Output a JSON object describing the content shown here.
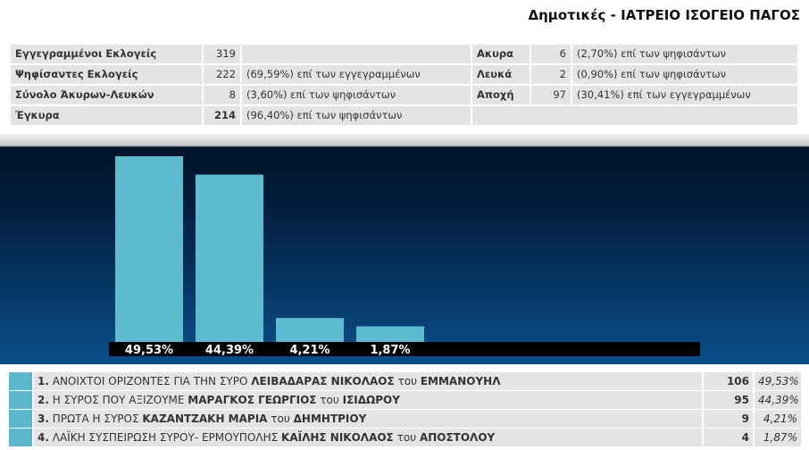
{
  "header": {
    "title": "Δημοτικές - ΙΑΤΡΕΙΟ ΙΣΟΓΕΙΟ ΠΑΓΟΣ"
  },
  "stats_left": [
    [
      "Εγγεγραμμένοι Εκλογείς",
      319
    ],
    [
      "Ψηφίσαντες Εκλογείς",
      222,
      "(69,59%) επί των εγγεγραμμένων"
    ],
    [
      "Σύνολο Άκυρων-Λευκών",
      8,
      "(3,60%) επί των ψηφισάντων"
    ],
    [
      "Έγκυρα",
      214,
      "(96,40%) επί των ψηφισάντων"
    ]
  ],
  "stats_right": [
    [
      "Ακυρα",
      6,
      "(2,70%) επί των ψηφισάντων"
    ],
    [
      "Λευκά",
      2,
      "(0,90%) επί των ψηφισάντων"
    ],
    [
      "Αποχή",
      97,
      "(30,41%) επί των εγγεγραμμένων"
    ]
  ],
  "chart": {
    "type": "bar",
    "values": [
      49.53,
      44.39,
      4.21,
      1.87
    ],
    "value_labels": [
      "49,53%",
      "44,39%",
      "4,21%",
      "1,87%"
    ],
    "color": "#5cbbcf"
  },
  "results": [
    {
      "rank": "1.",
      "party": "ΑΝΟΙΧΤΟΙ ΟΡΙΖΟΝΤΕΣ ΓΙΑ ΤΗΝ ΣΥΡΟ",
      "candidate": "ΛΕΙΒΑΔΑΡΑΣ ΝΙΚΟΛΑΟΣ",
      "of": "του",
      "father": "ΕΜΜΑΝΟΥΗΛ",
      "votes": 106,
      "percent": "49,53%"
    },
    {
      "rank": "2.",
      "party": "Η ΣΥΡΟΣ ΠΟΥ ΑΞΙΖΟΥΜΕ",
      "candidate": "ΜΑΡΑΓΚΟΣ ΓΕΩΡΓΙΟΣ",
      "of": "του",
      "father": "ΙΣΙΔΩΡΟΥ",
      "votes": 95,
      "percent": "44,39%"
    },
    {
      "rank": "3.",
      "party": "ΠΡΩΤΑ Η ΣΥΡΟΣ",
      "candidate": "ΚΑΖΑΝΤΖΑΚΗ ΜΑΡΙΑ",
      "of": "του",
      "father": "ΔΗΜΗΤΡΙΟΥ",
      "votes": 9,
      "percent": "4,21%"
    },
    {
      "rank": "4.",
      "party": "ΛΑΪΚΗ ΣΥΣΠΕΙΡΩΣΗ ΣΥΡΟΥ- ΕΡΜΟΥΠΟΛΗΣ",
      "candidate": "ΚΑΪΛΗΣ ΝΙΚΟΛΑΟΣ",
      "of": "του",
      "father": "ΑΠΟΣΤΟΛΟΥ",
      "votes": 4,
      "percent": "1,87%"
    }
  ]
}
